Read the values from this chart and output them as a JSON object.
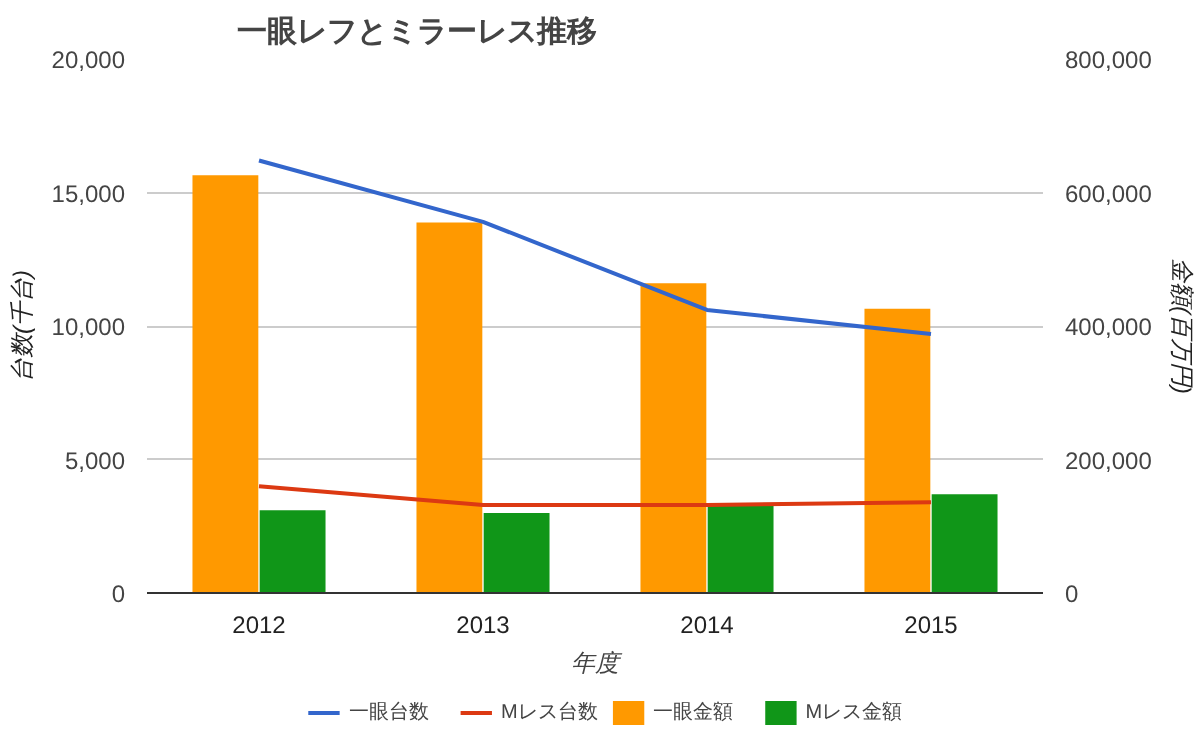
{
  "chart_data": {
    "type": "bar",
    "title": "一眼レフとミラーレス推移",
    "xlabel": "年度",
    "ylabel": "台数(千台)",
    "y2label": "金額(百万円)",
    "categories": [
      "2012",
      "2013",
      "2014",
      "2015"
    ],
    "series": [
      {
        "name": "一眼台数",
        "type": "line",
        "color": "#3366cc",
        "values": [
          16200,
          13900,
          10600,
          9700
        ]
      },
      {
        "name": "Mレス台数",
        "type": "line",
        "color": "#dc3912",
        "values": [
          4000,
          3300,
          3300,
          3400
        ]
      },
      {
        "name": "一眼金額",
        "axis": "y2",
        "color": "#ff9900",
        "values": [
          626000,
          555000,
          464000,
          426000
        ]
      },
      {
        "name": "Mレス金額",
        "axis": "y2",
        "color": "#109618",
        "values": [
          124000,
          120000,
          132000,
          148000
        ]
      }
    ],
    "ylim": [
      0,
      20000
    ],
    "yticks": [
      {
        "value": 0,
        "label": "0"
      },
      {
        "value": 5000,
        "label": "5,000"
      },
      {
        "value": 10000,
        "label": "10,000"
      },
      {
        "value": 15000,
        "label": "15,000"
      },
      {
        "value": 20000,
        "label": "20,000"
      }
    ],
    "y2lim": [
      0,
      800000
    ],
    "y2ticks": [
      {
        "value": 0,
        "label": "0"
      },
      {
        "value": 200000,
        "label": "200,000"
      },
      {
        "value": 400000,
        "label": "400,000"
      },
      {
        "value": 600000,
        "label": "600,000"
      },
      {
        "value": 800000,
        "label": "800,000"
      }
    ],
    "grid": "y",
    "legend": "bottom"
  }
}
